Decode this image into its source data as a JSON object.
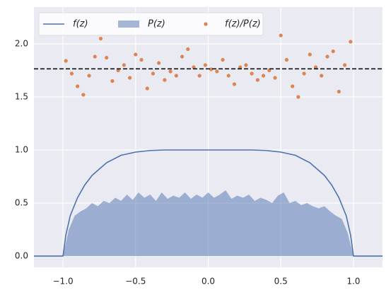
{
  "chart_data": {
    "type": "line",
    "xlim": [
      -1.2,
      1.2
    ],
    "ylim": [
      -0.107,
      2.347
    ],
    "xticks": [
      {
        "value": -1.0,
        "label": "−1.0"
      },
      {
        "value": -0.5,
        "label": "−0.5"
      },
      {
        "value": 0,
        "label": "0.0"
      },
      0.5,
      {
        "value": 1.0,
        "label": "1.0"
      }
    ],
    "yticks": [
      {
        "value": 0,
        "label": "0.0"
      },
      0.5,
      {
        "value": 1.0,
        "label": "1.0"
      },
      1.5,
      {
        "value": 2.0,
        "label": "2.0"
      }
    ],
    "grid": true,
    "legend": "upper left",
    "hline": 1.765,
    "series": [
      {
        "name": "f(z)",
        "kind": "line",
        "color": "#4c72b0",
        "x": [
          -1.2,
          -1,
          -0.98,
          -0.95,
          -0.9,
          -0.85,
          -0.8,
          -0.7,
          -0.6,
          -0.5,
          -0.4,
          -0.3,
          0,
          0.3,
          0.4,
          0.5,
          0.6,
          0.7,
          0.8,
          0.85,
          0.9,
          0.95,
          0.98,
          1,
          1.2
        ],
        "values": [
          0,
          0,
          0.2,
          0.38,
          0.55,
          0.67,
          0.76,
          0.88,
          0.95,
          0.98,
          0.995,
          1,
          1,
          1,
          0.995,
          0.98,
          0.95,
          0.88,
          0.76,
          0.67,
          0.55,
          0.38,
          0.2,
          0,
          0
        ]
      },
      {
        "name": "P(z)",
        "kind": "area",
        "color": "#4c72b0",
        "x": [
          -1.2,
          -1,
          -0.96,
          -0.92,
          -0.88,
          -0.84,
          -0.8,
          -0.76,
          -0.72,
          -0.68,
          -0.64,
          -0.6,
          -0.56,
          -0.52,
          -0.48,
          -0.44,
          -0.4,
          -0.36,
          -0.32,
          -0.28,
          -0.24,
          -0.2,
          -0.16,
          -0.12,
          -0.08,
          -0.04,
          0,
          0.04,
          0.08,
          0.12,
          0.16,
          0.2,
          0.24,
          0.28,
          0.32,
          0.36,
          0.4,
          0.44,
          0.48,
          0.52,
          0.56,
          0.6,
          0.64,
          0.68,
          0.72,
          0.76,
          0.8,
          0.84,
          0.88,
          0.92,
          0.96,
          1,
          1.2
        ],
        "values": [
          0,
          0,
          0.25,
          0.38,
          0.42,
          0.45,
          0.5,
          0.47,
          0.52,
          0.5,
          0.55,
          0.52,
          0.58,
          0.53,
          0.6,
          0.55,
          0.58,
          0.52,
          0.6,
          0.54,
          0.57,
          0.55,
          0.6,
          0.54,
          0.58,
          0.55,
          0.6,
          0.55,
          0.58,
          0.62,
          0.54,
          0.57,
          0.55,
          0.58,
          0.52,
          0.55,
          0.53,
          0.5,
          0.57,
          0.6,
          0.5,
          0.52,
          0.48,
          0.5,
          0.47,
          0.45,
          0.47,
          0.42,
          0.38,
          0.35,
          0.22,
          0,
          0
        ]
      },
      {
        "name": "f(z)/P(z)",
        "kind": "scatter",
        "color": "#dd8452",
        "x": [
          -0.98,
          -0.94,
          -0.9,
          -0.86,
          -0.82,
          -0.78,
          -0.74,
          -0.7,
          -0.66,
          -0.62,
          -0.58,
          -0.54,
          -0.5,
          -0.46,
          -0.42,
          -0.38,
          -0.34,
          -0.3,
          -0.26,
          -0.22,
          -0.18,
          -0.14,
          -0.1,
          -0.06,
          -0.02,
          0.02,
          0.06,
          0.1,
          0.14,
          0.18,
          0.22,
          0.26,
          0.3,
          0.34,
          0.38,
          0.42,
          0.46,
          0.5,
          0.54,
          0.58,
          0.62,
          0.66,
          0.7,
          0.74,
          0.78,
          0.82,
          0.86,
          0.9,
          0.94,
          0.98
        ],
        "values": [
          1.84,
          1.72,
          1.6,
          1.52,
          1.7,
          1.88,
          2.05,
          1.87,
          1.65,
          1.75,
          1.8,
          1.68,
          1.9,
          1.85,
          1.58,
          1.72,
          1.82,
          1.66,
          1.74,
          1.7,
          1.88,
          1.95,
          1.78,
          1.7,
          1.8,
          1.76,
          1.74,
          1.85,
          1.7,
          1.62,
          1.78,
          1.8,
          1.72,
          1.66,
          1.7,
          1.75,
          1.68,
          2.08,
          1.85,
          1.6,
          1.5,
          1.72,
          1.9,
          1.78,
          1.7,
          1.88,
          1.93,
          1.55,
          1.8,
          2.02
        ]
      }
    ]
  }
}
